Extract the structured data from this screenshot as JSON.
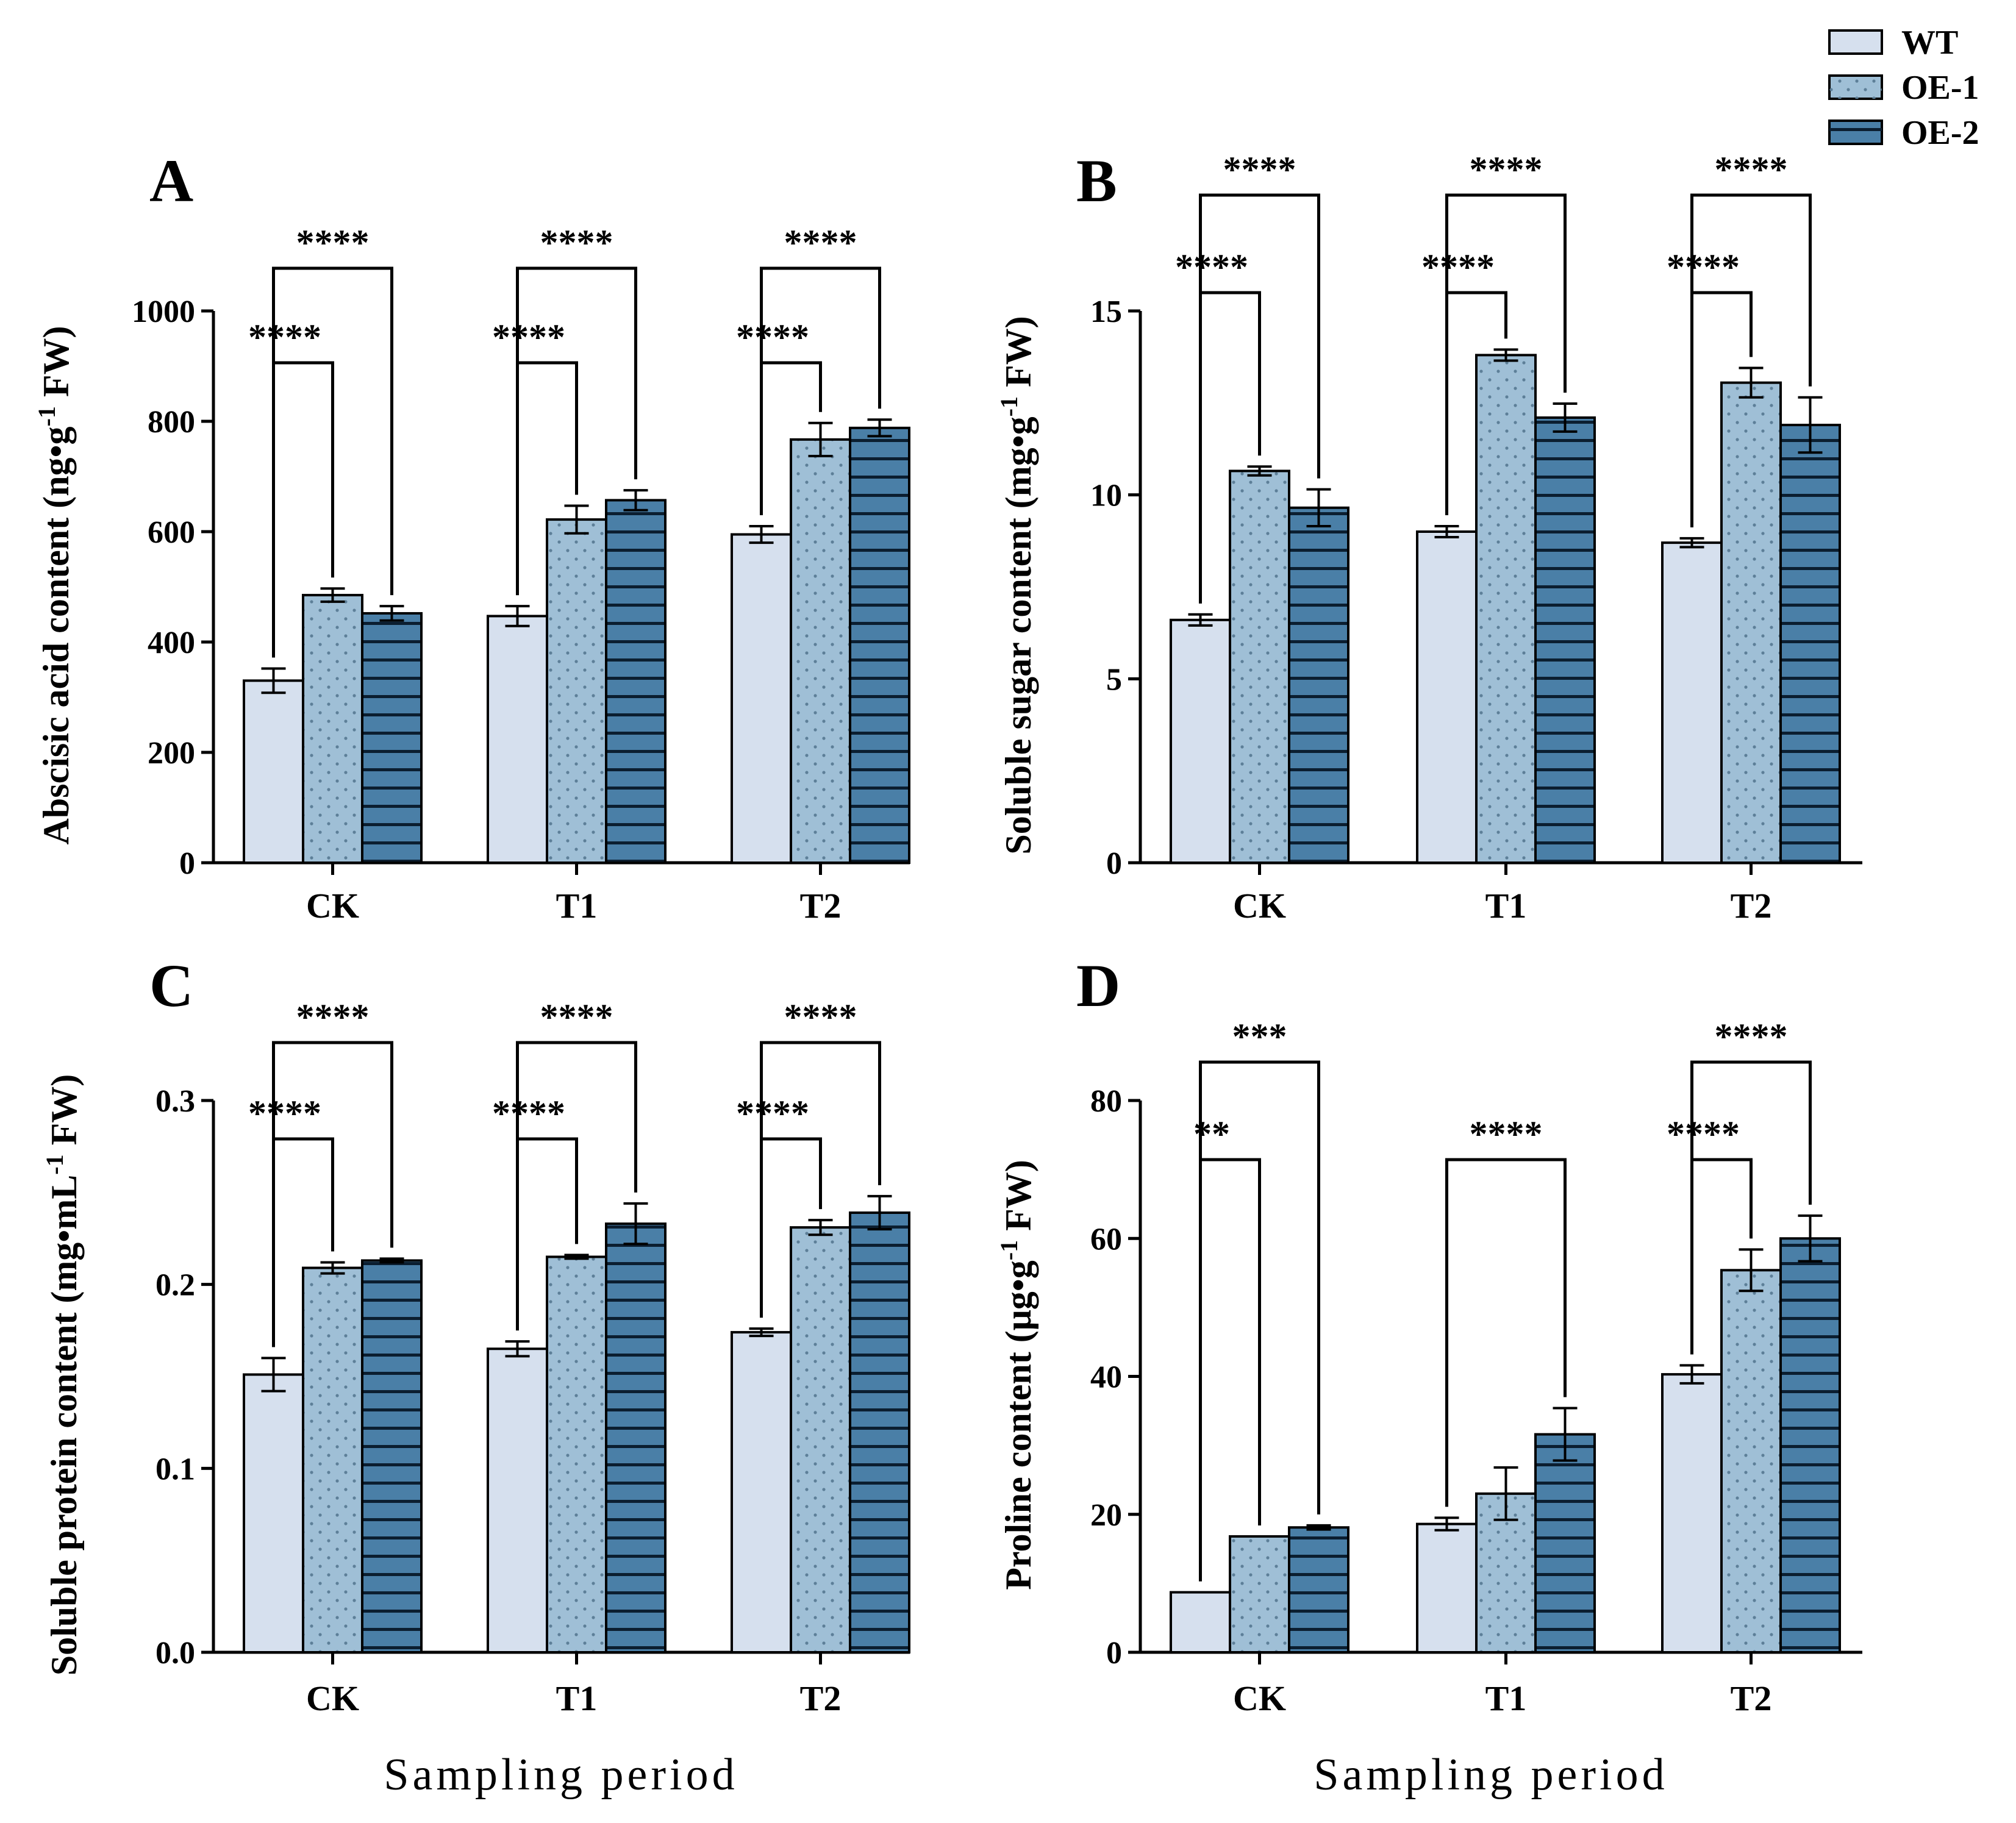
{
  "series_names": [
    "WT",
    "OE-1",
    "OE-2"
  ],
  "series_colors": [
    "#d6e0ee",
    "#9fbfd6",
    "#4a7fa7"
  ],
  "xlabel": "Sampling period",
  "chart_data": [
    {
      "type": "bar",
      "panel": "A",
      "ylabel": "Abscisic acid content (ng•g",
      "ylabel_sup": "-1",
      "ylabel_tail": " FW)",
      "ylim": [
        0,
        1000
      ],
      "yticks": [
        0,
        200,
        400,
        600,
        800,
        1000
      ],
      "ytick_labels": [
        "0",
        "200",
        "400",
        "600",
        "800",
        "1000"
      ],
      "categories": [
        "CK",
        "T1",
        "T2"
      ],
      "series": [
        {
          "name": "WT",
          "values": [
            330,
            447,
            595
          ],
          "errors": [
            22,
            18,
            15
          ]
        },
        {
          "name": "OE-1",
          "values": [
            485,
            622,
            767
          ],
          "errors": [
            12,
            25,
            30
          ]
        },
        {
          "name": "OE-2",
          "values": [
            452,
            657,
            788
          ],
          "errors": [
            13,
            18,
            15
          ]
        }
      ],
      "significance": [
        {
          "category": 0,
          "from": 0,
          "to": 1,
          "label": "****"
        },
        {
          "category": 0,
          "from": 0,
          "to": 2,
          "label": "****"
        },
        {
          "category": 1,
          "from": 0,
          "to": 1,
          "label": "****"
        },
        {
          "category": 1,
          "from": 0,
          "to": 2,
          "label": "****"
        },
        {
          "category": 2,
          "from": 0,
          "to": 1,
          "label": "****"
        },
        {
          "category": 2,
          "from": 0,
          "to": 2,
          "label": "****"
        }
      ]
    },
    {
      "type": "bar",
      "panel": "B",
      "ylabel": "Soluble sugar content (mg•g",
      "ylabel_sup": "-1",
      "ylabel_tail": " FW)",
      "ylim": [
        0,
        15
      ],
      "yticks": [
        0,
        5,
        10,
        15
      ],
      "ytick_labels": [
        "0",
        "5",
        "10",
        "15"
      ],
      "categories": [
        "CK",
        "T1",
        "T2"
      ],
      "series": [
        {
          "name": "WT",
          "values": [
            6.6,
            9.0,
            8.7
          ],
          "errors": [
            0.15,
            0.15,
            0.12
          ]
        },
        {
          "name": "OE-1",
          "values": [
            10.65,
            13.8,
            13.05
          ],
          "errors": [
            0.12,
            0.15,
            0.4
          ]
        },
        {
          "name": "OE-2",
          "values": [
            9.65,
            12.1,
            11.9
          ],
          "errors": [
            0.5,
            0.38,
            0.75
          ]
        }
      ],
      "significance": [
        {
          "category": 0,
          "from": 0,
          "to": 1,
          "label": "****"
        },
        {
          "category": 0,
          "from": 0,
          "to": 2,
          "label": "****"
        },
        {
          "category": 1,
          "from": 0,
          "to": 1,
          "label": "****"
        },
        {
          "category": 1,
          "from": 0,
          "to": 2,
          "label": "****"
        },
        {
          "category": 2,
          "from": 0,
          "to": 1,
          "label": "****"
        },
        {
          "category": 2,
          "from": 0,
          "to": 2,
          "label": "****"
        }
      ]
    },
    {
      "type": "bar",
      "panel": "C",
      "ylabel": "Soluble protein content (mg•mL",
      "ylabel_sup": "-1",
      "ylabel_tail": " FW)",
      "ylim": [
        0,
        0.3
      ],
      "yticks": [
        0,
        0.1,
        0.2,
        0.3
      ],
      "ytick_labels": [
        "0.0",
        "0.1",
        "0.2",
        "0.3"
      ],
      "categories": [
        "CK",
        "T1",
        "T2"
      ],
      "series": [
        {
          "name": "WT",
          "values": [
            0.151,
            0.165,
            0.174
          ],
          "errors": [
            0.009,
            0.004,
            0.002
          ]
        },
        {
          "name": "OE-1",
          "values": [
            0.209,
            0.215,
            0.231
          ],
          "errors": [
            0.003,
            0.001,
            0.004
          ]
        },
        {
          "name": "OE-2",
          "values": [
            0.213,
            0.233,
            0.239
          ],
          "errors": [
            0.001,
            0.011,
            0.009
          ]
        }
      ],
      "significance": [
        {
          "category": 0,
          "from": 0,
          "to": 1,
          "label": "****"
        },
        {
          "category": 0,
          "from": 0,
          "to": 2,
          "label": "****"
        },
        {
          "category": 1,
          "from": 0,
          "to": 1,
          "label": "****"
        },
        {
          "category": 1,
          "from": 0,
          "to": 2,
          "label": "****"
        },
        {
          "category": 2,
          "from": 0,
          "to": 1,
          "label": "****"
        },
        {
          "category": 2,
          "from": 0,
          "to": 2,
          "label": "****"
        }
      ]
    },
    {
      "type": "bar",
      "panel": "D",
      "ylabel": "Proline content (μg•g",
      "ylabel_sup": "-1",
      "ylabel_tail": " FW)",
      "ylim": [
        0,
        80
      ],
      "yticks": [
        0,
        20,
        40,
        60,
        80
      ],
      "ytick_labels": [
        "0",
        "20",
        "40",
        "60",
        "80"
      ],
      "categories": [
        "CK",
        "T1",
        "T2"
      ],
      "series": [
        {
          "name": "WT",
          "values": [
            8.7,
            18.6,
            40.3
          ],
          "errors": [
            0,
            0.9,
            1.3
          ]
        },
        {
          "name": "OE-1",
          "values": [
            16.8,
            23.0,
            55.4
          ],
          "errors": [
            0,
            3.8,
            3.0
          ]
        },
        {
          "name": "OE-2",
          "values": [
            18.1,
            31.6,
            60.0
          ],
          "errors": [
            0.3,
            3.8,
            3.3
          ]
        }
      ],
      "significance": [
        {
          "category": 0,
          "from": 0,
          "to": 1,
          "label": "**"
        },
        {
          "category": 0,
          "from": 0,
          "to": 2,
          "label": "***"
        },
        {
          "category": 1,
          "from": 0,
          "to": 2,
          "label": "****"
        },
        {
          "category": 2,
          "from": 0,
          "to": 1,
          "label": "****"
        },
        {
          "category": 2,
          "from": 0,
          "to": 2,
          "label": "****"
        }
      ]
    }
  ]
}
